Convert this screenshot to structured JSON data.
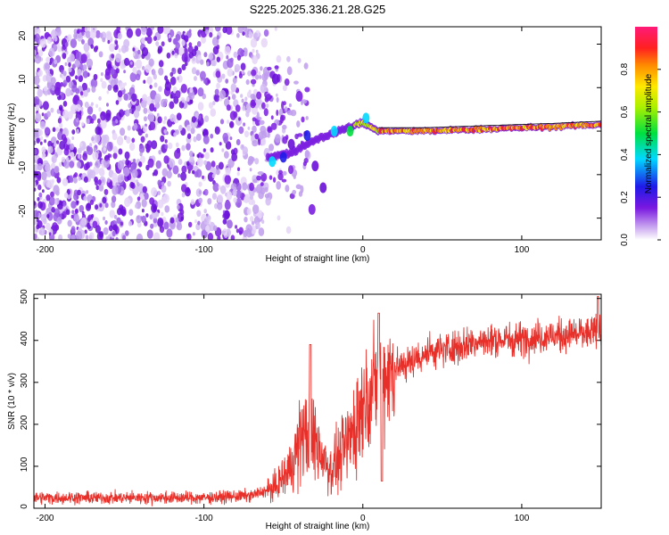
{
  "title": "S225.2025.336.21.28.G25",
  "chart_data": [
    {
      "type": "heatmap",
      "name": "spectrogram",
      "xlabel": "Height of straight line (km)",
      "ylabel": "Frequency (Hz)",
      "xlim": [
        -207,
        150
      ],
      "ylim": [
        -25,
        24
      ],
      "xticks": [
        -200,
        -100,
        0,
        100
      ],
      "yticks": [
        -20,
        -10,
        0,
        10,
        20
      ],
      "colorbar": {
        "label": "Normalized spectral amplitude",
        "range": [
          0,
          1
        ],
        "ticks": [
          "0.0",
          "0.2",
          "0.4",
          "0.6",
          "0.8"
        ]
      },
      "ridge_frequency_hz": [
        {
          "x": -60,
          "f": -6
        },
        {
          "x": -45,
          "f": -5
        },
        {
          "x": -30,
          "f": -2
        },
        {
          "x": -15,
          "f": 0
        },
        {
          "x": 0,
          "f": 2
        },
        {
          "x": 10,
          "f": 0
        },
        {
          "x": 40,
          "f": 0
        },
        {
          "x": 80,
          "f": 0.5
        },
        {
          "x": 120,
          "f": 1
        },
        {
          "x": 150,
          "f": 1.5
        }
      ]
    },
    {
      "type": "line",
      "name": "snr",
      "xlabel": "Height of straight line (km)",
      "ylabel": "SNR (10 * v/v)",
      "xlim": [
        -207,
        150
      ],
      "ylim": [
        0,
        510
      ],
      "xticks": [
        -200,
        -100,
        0,
        100
      ],
      "yticks": [
        0,
        100,
        200,
        300,
        400,
        500
      ],
      "color": "#e8302a",
      "trend": [
        {
          "x": -207,
          "y": 25
        },
        {
          "x": -100,
          "y": 25
        },
        {
          "x": -70,
          "y": 30
        },
        {
          "x": -55,
          "y": 50
        },
        {
          "x": -45,
          "y": 100
        },
        {
          "x": -38,
          "y": 180
        },
        {
          "x": -30,
          "y": 160
        },
        {
          "x": -20,
          "y": 90
        },
        {
          "x": -10,
          "y": 150
        },
        {
          "x": 0,
          "y": 250
        },
        {
          "x": 10,
          "y": 310
        },
        {
          "x": 20,
          "y": 330
        },
        {
          "x": 40,
          "y": 370
        },
        {
          "x": 70,
          "y": 395
        },
        {
          "x": 100,
          "y": 405
        },
        {
          "x": 150,
          "y": 420
        }
      ],
      "annotations": [
        {
          "x": -33,
          "y": 390,
          "note": "spike"
        },
        {
          "x": 10,
          "y": 465,
          "note": "spike"
        },
        {
          "x": 12,
          "y": 65,
          "note": "dip"
        },
        {
          "x": 148,
          "y": 505,
          "note": "max"
        }
      ]
    }
  ]
}
